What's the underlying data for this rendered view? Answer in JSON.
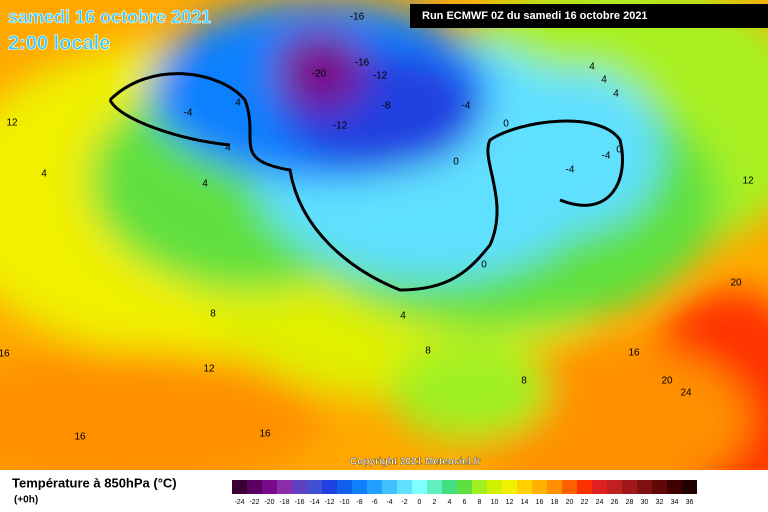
{
  "header": {
    "date": "samedi 16 octobre 2021",
    "time": "2:00 locale",
    "run": "Run ECMWF 0Z du samedi 16 octobre 2021",
    "copyright": "Copyright 2021 Meteociel.fr"
  },
  "legend": {
    "title": "Température à 850hPa (°C)",
    "step": "(+0h)",
    "values": [
      -24,
      -22,
      -20,
      -18,
      -16,
      -14,
      -12,
      -10,
      -8,
      -6,
      -4,
      -2,
      0,
      2,
      4,
      6,
      8,
      10,
      12,
      14,
      16,
      18,
      20,
      22,
      24,
      26,
      28,
      30,
      32,
      34,
      36
    ],
    "colors": [
      "#3a0034",
      "#5a0060",
      "#7a0a8a",
      "#8a2cab",
      "#6040c0",
      "#4050d0",
      "#2040e0",
      "#1060f0",
      "#1080ff",
      "#20a0ff",
      "#40c0ff",
      "#60e0ff",
      "#80ffff",
      "#60f0c0",
      "#40e080",
      "#60e040",
      "#a0f020",
      "#d0f000",
      "#f0f000",
      "#ffd000",
      "#ffb000",
      "#ff9000",
      "#ff6000",
      "#ff3000",
      "#e02020",
      "#c02020",
      "#a01818",
      "#801010",
      "#600808",
      "#400000",
      "#200000"
    ]
  },
  "contour_labels": [
    -16,
    -20,
    -16,
    -12,
    -12,
    -8,
    -4,
    0,
    0,
    -4,
    4,
    4,
    4,
    4,
    4,
    -4,
    0,
    -4,
    12,
    4,
    4,
    12,
    0,
    4,
    8,
    8,
    16,
    12,
    16,
    20,
    20,
    24,
    8,
    16,
    16
  ]
}
